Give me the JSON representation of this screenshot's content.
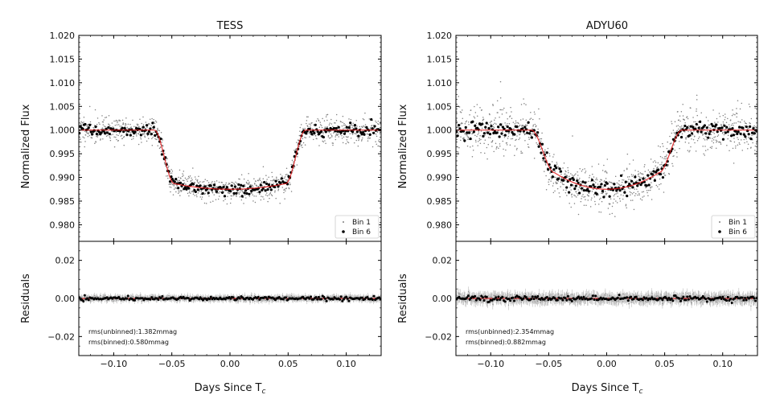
{
  "chart_data": [
    {
      "type": "scatter",
      "title": "TESS",
      "xlabel": "Days Since T",
      "xlabel_subscript": "c",
      "xlim": [
        -0.13,
        0.13
      ],
      "xticks": [
        "−0.10",
        "−0.05",
        "0.00",
        "0.05",
        "0.10"
      ],
      "xtick_values": [
        -0.1,
        -0.05,
        0.0,
        0.05,
        0.1
      ],
      "flux": {
        "ylabel": "Normalized Flux",
        "ylim": [
          0.9765,
          1.02
        ],
        "yticks": [
          "0.980",
          "0.985",
          "0.990",
          "0.995",
          "1.000",
          "1.005",
          "1.010",
          "1.015",
          "1.020"
        ],
        "ytick_values": [
          0.98,
          0.985,
          0.99,
          0.995,
          1.0,
          1.005,
          1.01,
          1.015,
          1.02
        ],
        "depth": 0.0125,
        "t1": 0.065,
        "t2": 0.048,
        "curvature": 0.0012,
        "scatter_unbinned": 0.0014,
        "scatter_binned": 0.0006,
        "series": [
          {
            "name": "Bin 1",
            "color": "#808080"
          },
          {
            "name": "Bin 6",
            "color": "#000000"
          },
          {
            "name": "model",
            "color": "#e41a1c"
          }
        ]
      },
      "residuals": {
        "ylabel": "Residuals",
        "ylim": [
          -0.03,
          0.03
        ],
        "yticks": [
          "−0.02",
          "0.00",
          "0.02"
        ],
        "ytick_values": [
          -0.02,
          0.0,
          0.02
        ],
        "rms_unbinned": "rms(unbinned):1.382mmag",
        "rms_binned": "rms(binned):0.580mmag"
      },
      "legend": {
        "position": "lower-right",
        "entries": [
          "Bin 1",
          "Bin 6"
        ]
      }
    },
    {
      "type": "scatter",
      "title": "ADYU60",
      "xlabel": "Days Since T",
      "xlabel_subscript": "c",
      "xlim": [
        -0.13,
        0.13
      ],
      "xticks": [
        "−0.10",
        "−0.05",
        "0.00",
        "0.05",
        "0.10"
      ],
      "xtick_values": [
        -0.1,
        -0.05,
        0.0,
        0.05,
        0.1
      ],
      "flux": {
        "ylabel": "Normalized Flux",
        "ylim": [
          0.9765,
          1.02
        ],
        "yticks": [
          "0.980",
          "0.985",
          "0.990",
          "0.995",
          "1.000",
          "1.005",
          "1.010",
          "1.015",
          "1.020"
        ],
        "ytick_values": [
          0.98,
          0.985,
          0.99,
          0.995,
          1.0,
          1.005,
          1.01,
          1.015,
          1.02
        ],
        "depth": 0.0125,
        "t1": 0.065,
        "t2": 0.045,
        "curvature": 0.0035,
        "scatter_unbinned": 0.0024,
        "scatter_binned": 0.0009,
        "series": [
          {
            "name": "Bin 1",
            "color": "#808080"
          },
          {
            "name": "Bin 6",
            "color": "#000000"
          },
          {
            "name": "model",
            "color": "#e41a1c"
          }
        ]
      },
      "residuals": {
        "ylabel": "Residuals",
        "ylim": [
          -0.03,
          0.03
        ],
        "yticks": [
          "−0.02",
          "0.00",
          "0.02"
        ],
        "ytick_values": [
          -0.02,
          0.0,
          0.02
        ],
        "rms_unbinned": "rms(unbinned):2.354mmag",
        "rms_binned": "rms(binned):0.882mmag"
      },
      "legend": {
        "position": "lower-right",
        "entries": [
          "Bin 1",
          "Bin 6"
        ]
      }
    }
  ]
}
